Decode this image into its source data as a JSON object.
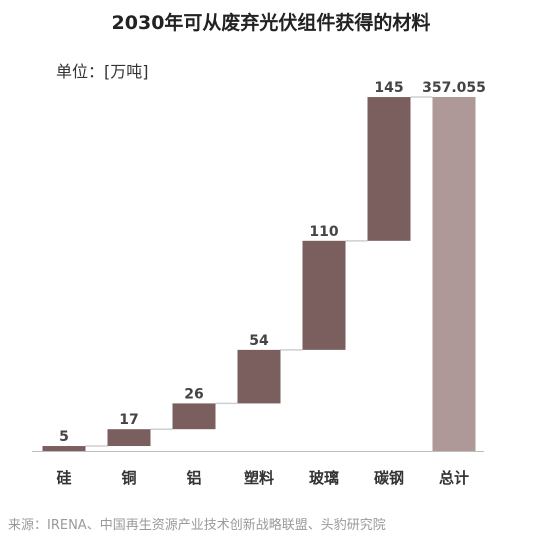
{
  "title": "2030年可从废弃光伏组件获得的材料",
  "unit_label": "单位：[万吨]",
  "source": "来源：IRENA、中国再生资源产业技术创新战略联盟、头豹研究院",
  "colors": {
    "bar": "#7b5e5e",
    "total": "#ae9898",
    "connector": "#cfcfcf",
    "axis": "#bdbdbd"
  },
  "chart_data": {
    "type": "waterfall",
    "title": "2030年可从废弃光伏组件获得的材料",
    "ylabel": "单位：[万吨]",
    "categories": [
      "硅",
      "铜",
      "铝",
      "塑料",
      "玻璃",
      "碳钢",
      "总计"
    ],
    "values": [
      5,
      17,
      26,
      54,
      110,
      145,
      357.055
    ],
    "data_labels": [
      "5",
      "17",
      "26",
      "54",
      "110",
      "145",
      "357.055"
    ],
    "is_total": [
      false,
      false,
      false,
      false,
      false,
      false,
      true
    ],
    "ylim": [
      0,
      357.055
    ],
    "grid": false,
    "legend": "none"
  }
}
